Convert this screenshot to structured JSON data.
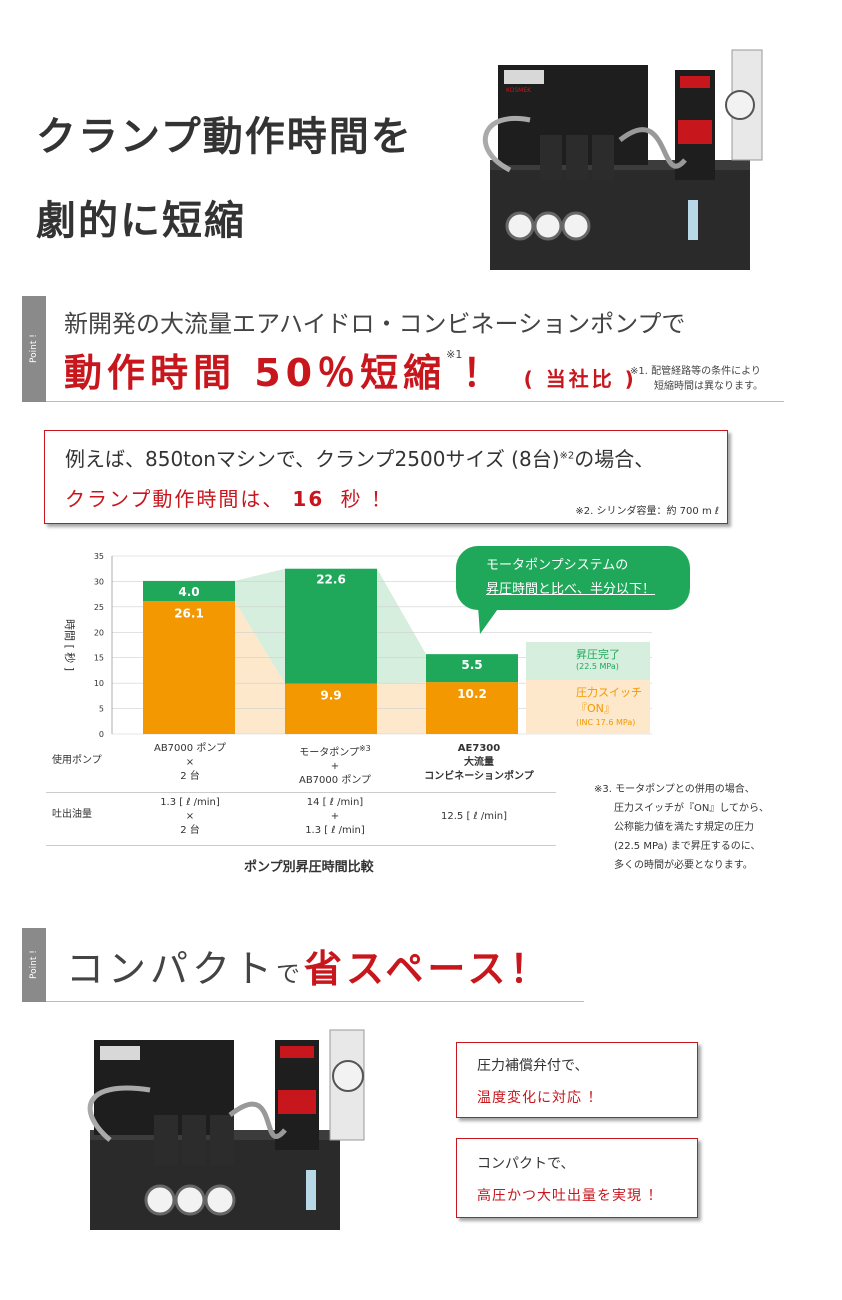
{
  "hero": {
    "title_line1": "クランプ動作時間を",
    "title_line2": "劇的に短縮"
  },
  "point_label": "Point !",
  "section1": {
    "lead": "新開発の大流量エアハイドロ・コンビネーションポンプで",
    "headline": "動作時間 50％短縮",
    "headline_sup": "※1",
    "headline_excl": "！",
    "headline_suffix": "( 当社比 )",
    "note1_line1": "※1. 配管経路等の条件により",
    "note1_line2": "短縮時間は異なります。"
  },
  "example": {
    "line1_a": "例えば、850tonマシンで、クランプ2500サイズ (8台)",
    "line1_sup": "※2",
    "line1_b": "の場合、",
    "line2_a": "クランプ動作時間は、",
    "line2_num": "16",
    "line2_b": " 秒 ！",
    "note2": "※2. シリンダ容量：約 700 m ℓ"
  },
  "chart_data": {
    "type": "bar",
    "stacked": true,
    "categories": [
      "AB7000 ポンプ × 2 台",
      "モータポンプ + AB7000 ポンプ",
      "AE7300 大流量 コンビネーションポンプ"
    ],
    "series": [
      {
        "name": "圧力スイッチ『ON』",
        "values": [
          26.1,
          9.9,
          10.2
        ],
        "color": "#f39800"
      },
      {
        "name": "昇圧完了",
        "values": [
          4.0,
          22.6,
          5.5
        ],
        "color": "#1fa85a"
      }
    ],
    "ylabel": "時間 [ 秒 ]",
    "ylim": [
      0,
      35
    ],
    "yticks": [
      0,
      5,
      10,
      15,
      20,
      25,
      30,
      35
    ],
    "title": "ポンプ別昇圧時間比較",
    "grid": true,
    "legend_green_title": "昇圧完了",
    "legend_green_sub": "(22.5 MPa)",
    "legend_orange_title": "圧力スイッチ",
    "legend_orange_title2": "『ON』",
    "legend_orange_sub": "(INC 17.6 MPa)",
    "bubble_line1": "モータポンプシステムの",
    "bubble_line2": "昇圧時間と比べ、半分以下！"
  },
  "table": {
    "row1_label": "使用ポンプ",
    "row2_label": "吐出油量",
    "pump1": [
      "AB7000 ポンプ",
      "×",
      "2 台"
    ],
    "pump2_line1": "モータポンプ",
    "pump2_sup": "※3",
    "pump2": [
      "+",
      "AB7000 ポンプ"
    ],
    "pump3": [
      "AE7300",
      "大流量",
      "コンビネーションポンプ"
    ],
    "flow1": [
      "1.3 [ ℓ /min]",
      "×",
      "2 台"
    ],
    "flow2": [
      "14 [ ℓ /min]",
      "+",
      "1.3 [ ℓ /min]"
    ],
    "flow3": "12.5 [ ℓ /min]"
  },
  "note3": [
    "※3. モータポンプとの併用の場合、",
    "圧力スイッチが『ON』してから、",
    "公称能力値を満たす規定の圧力",
    "(22.5 MPa) まで昇圧するのに、",
    "多くの時間が必要となります。"
  ],
  "section2": {
    "headline_a": "コンパクト",
    "headline_b": "で",
    "headline_c": "省スペース！"
  },
  "feature1": {
    "line1": "圧力補償弁付で、",
    "line2": "温度変化に対応 ！"
  },
  "feature2": {
    "line1": "コンパクトで、",
    "line2": "高圧かつ大吐出量を実現 ！"
  },
  "colors": {
    "accent_red": "#c8161d",
    "green": "#1fa85a",
    "orange": "#f39800",
    "point_gray": "#8a8a8a"
  },
  "machine_label": "KOSMEK"
}
